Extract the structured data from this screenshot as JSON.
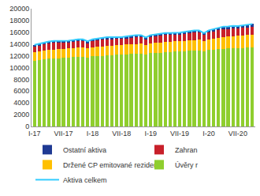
{
  "chart_data": {
    "type": "bar",
    "stacked": true,
    "grid": false,
    "legend": "bottom",
    "categories": [
      "I-17",
      null,
      null,
      null,
      null,
      null,
      "VII-17",
      null,
      null,
      null,
      null,
      null,
      "I-18",
      null,
      null,
      null,
      null,
      null,
      "VII-18",
      null,
      null,
      null,
      null,
      null,
      "I-19",
      null,
      null,
      null,
      null,
      null,
      "VII-19",
      null,
      null,
      null,
      null,
      null,
      "I-20",
      null,
      null,
      null,
      null,
      null,
      "VII-20",
      null,
      null,
      null
    ],
    "ylim": [
      0,
      20000
    ],
    "yticks": [
      0,
      2000,
      4000,
      6000,
      8000,
      10000,
      12000,
      14000,
      16000,
      18000,
      20000
    ],
    "series": [
      {
        "name": "Úvěry r",
        "color": "#8fce2e",
        "values": [
          11200,
          11300,
          11450,
          11500,
          11550,
          11600,
          11650,
          11700,
          11750,
          11800,
          11850,
          11700,
          11900,
          11950,
          12000,
          12050,
          12100,
          12150,
          12200,
          12250,
          12300,
          12350,
          12400,
          12200,
          12450,
          12500,
          12550,
          12600,
          12650,
          12700,
          12750,
          12800,
          12850,
          12900,
          12950,
          12750,
          13000,
          13050,
          13150,
          13200,
          13250,
          13300,
          13300,
          13350,
          13400,
          13450
        ]
      },
      {
        "name": "Držené CP emitované rezidenty",
        "color": "#ffc000",
        "values": [
          1450,
          1470,
          1480,
          1500,
          1500,
          1520,
          1530,
          1540,
          1550,
          1560,
          1570,
          1560,
          1580,
          1600,
          1610,
          1620,
          1630,
          1640,
          1650,
          1660,
          1660,
          1670,
          1680,
          1670,
          1690,
          1700,
          1710,
          1720,
          1730,
          1740,
          1750,
          1760,
          1770,
          1780,
          1790,
          1780,
          1800,
          1850,
          1900,
          1950,
          2000,
          2050,
          2080,
          2100,
          2120,
          2150
        ]
      },
      {
        "name": "Zahran",
        "color": "#c8202a",
        "values": [
          900,
          950,
          1000,
          1100,
          1150,
          1100,
          1050,
          1000,
          1050,
          1100,
          1050,
          900,
          1000,
          1050,
          1100,
          1150,
          1100,
          1050,
          1000,
          1050,
          1100,
          1150,
          1100,
          950,
          1050,
          1100,
          1150,
          1200,
          1150,
          1100,
          1100,
          1150,
          1200,
          1250,
          1200,
          1000,
          1150,
          1250,
          1300,
          1350,
          1300,
          1300,
          1250,
          1300,
          1300,
          1350
        ]
      },
      {
        "name": "Ostatní aktiva",
        "color": "#1f3a93",
        "values": [
          300,
          320,
          330,
          340,
          330,
          320,
          310,
          320,
          330,
          340,
          330,
          300,
          320,
          330,
          340,
          350,
          340,
          330,
          320,
          330,
          340,
          350,
          340,
          310,
          330,
          340,
          350,
          360,
          350,
          340,
          340,
          350,
          360,
          370,
          360,
          330,
          380,
          420,
          450,
          460,
          440,
          430,
          420,
          430,
          440,
          450
        ]
      },
      {
        "name": "Aktiva celkem",
        "type": "line",
        "color": "#33ccff",
        "values": [
          13850,
          14040,
          14260,
          14440,
          14530,
          14540,
          14540,
          14560,
          14680,
          14800,
          14800,
          14460,
          14800,
          14930,
          15050,
          15170,
          15170,
          15170,
          15170,
          15290,
          15400,
          15520,
          15520,
          15130,
          15520,
          15640,
          15760,
          15880,
          15880,
          15880,
          15940,
          16060,
          16180,
          16300,
          16300,
          15860,
          16330,
          16570,
          16800,
          16960,
          16990,
          17080,
          17050,
          17180,
          17260,
          17400
        ]
      }
    ]
  }
}
